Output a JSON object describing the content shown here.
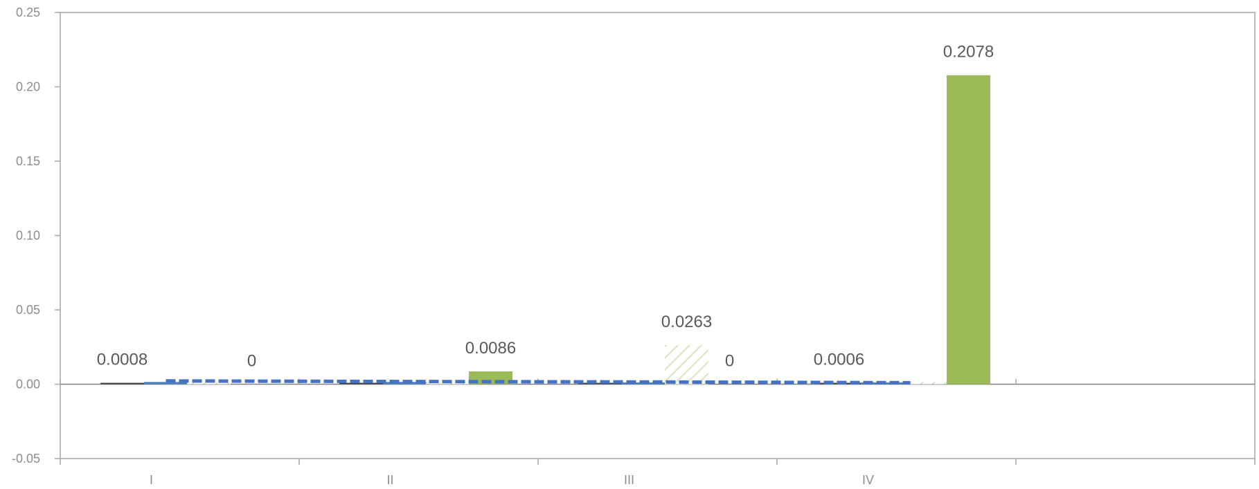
{
  "chart_data": {
    "type": "bar",
    "title": "",
    "xlabel": "",
    "ylabel": "",
    "ylim": [
      -0.05,
      0.25
    ],
    "yticks": [
      "0.25",
      "0.20",
      "0.15",
      "0.10",
      "0.05",
      "0.00",
      "-0.05"
    ],
    "yticks_values": [
      0.25,
      0.2,
      0.15,
      0.1,
      0.05,
      0.0,
      -0.05
    ],
    "categories": [
      "I",
      "II",
      "III",
      "IV",
      ""
    ],
    "grid": false,
    "legend": "none",
    "bars": [
      {
        "category": "I",
        "slot": 0,
        "value": 0.0008,
        "label": "0.0008",
        "style": "dark"
      },
      {
        "category": "I",
        "slot": 1,
        "value": 0.0015,
        "label": "",
        "style": "blue"
      },
      {
        "category": "I",
        "slot": 2,
        "value": 0.001,
        "label": "",
        "style": "green-hatch"
      },
      {
        "category": "I",
        "slot": 3,
        "value": 0,
        "label": "0",
        "style": "green"
      },
      {
        "category": "II",
        "slot": 0,
        "value": 0.0003,
        "label": "",
        "style": "dark"
      },
      {
        "category": "II",
        "slot": 1,
        "value": 0.0015,
        "label": "",
        "style": "blue"
      },
      {
        "category": "II",
        "slot": 2,
        "value": 0.0005,
        "label": "",
        "style": "green-hatch"
      },
      {
        "category": "II",
        "slot": 3,
        "value": 0.0086,
        "label": "0.0086",
        "style": "green"
      },
      {
        "category": "III",
        "slot": 0,
        "value": 0.0003,
        "label": "",
        "style": "dark"
      },
      {
        "category": "III",
        "slot": 1,
        "value": 0.0012,
        "label": "",
        "style": "blue"
      },
      {
        "category": "III",
        "slot": 2,
        "value": 0.0263,
        "label": "0.0263",
        "style": "green-hatch"
      },
      {
        "category": "III",
        "slot": 3,
        "value": 0,
        "label": "0",
        "style": "green"
      },
      {
        "category": "IV",
        "slot": 0,
        "value": 0.0006,
        "label": "0.0006",
        "style": "dark"
      },
      {
        "category": "IV",
        "slot": 1,
        "value": 0.0012,
        "label": "",
        "style": "blue"
      },
      {
        "category": "IV",
        "slot": 2,
        "value": 0.0015,
        "label": "",
        "style": "green-hatch"
      },
      {
        "category": "IV",
        "slot": 3,
        "value": 0.2078,
        "label": "0.2078",
        "style": "green"
      }
    ],
    "trendline": {
      "style": "dashed",
      "color": "#4472c4",
      "points": [
        {
          "category": "I",
          "value": 0.0022
        },
        {
          "category": "II",
          "value": 0.0018
        },
        {
          "category": "III",
          "value": 0.0015
        },
        {
          "category": "IV",
          "value": 0.001
        }
      ]
    },
    "colors": {
      "green": "#9bbb59",
      "green_hatch": "#d7e4bd",
      "blue": "#4f81bd",
      "dark": "#404040",
      "axis": "#a6a6a6"
    }
  }
}
